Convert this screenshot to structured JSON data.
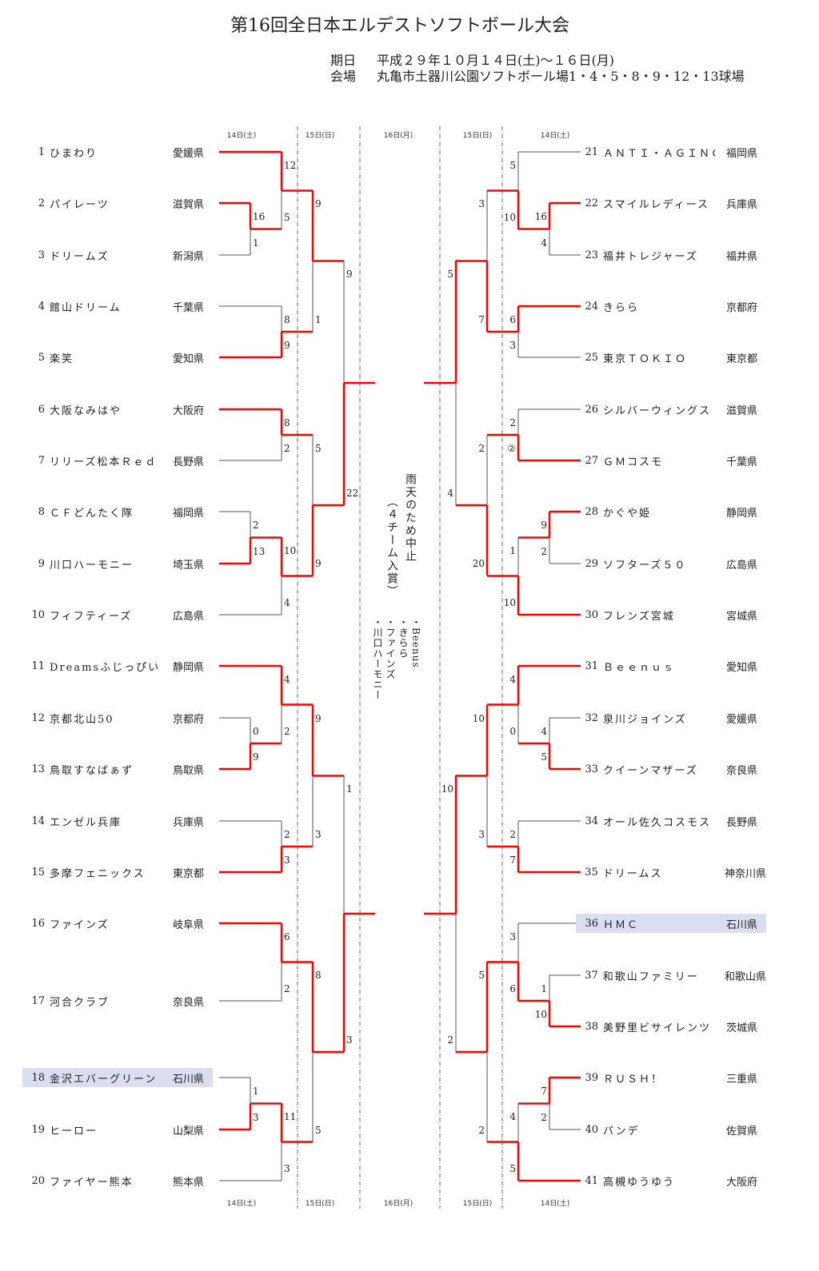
{
  "header": {
    "title": "第16回全日本エルデストソフトボール大会",
    "date_label": "期日",
    "date_value": "平成２９年１０月１４日(土)～１６日(月)",
    "venue_label": "会場",
    "venue_value": "丸亀市土器川公園ソフトボール場1・4・5・8・9・12・13球場"
  },
  "round_dates": [
    "14日(土)",
    "15日(日)",
    "16日(月)",
    "15日(日)",
    "14日(土)"
  ],
  "center_note": {
    "cancel": "雨天のため中止",
    "award": "（４チーム入賞）",
    "winners": [
      "・Beenus",
      "・きらら",
      "・ファインズ",
      "・川口ハーモニー"
    ]
  },
  "colors": {
    "winner_line": "#ff0000",
    "line": "#555555",
    "highlight": "#d9dff0"
  },
  "left_teams": [
    {
      "no": "1",
      "name": "ひまわり",
      "pref": "愛媛県",
      "won_first_game": true
    },
    {
      "no": "2",
      "name": "パイレーツ",
      "pref": "滋賀県",
      "won_first_game": true
    },
    {
      "no": "3",
      "name": "ドリームズ",
      "pref": "新潟県",
      "won_first_game": false
    },
    {
      "no": "4",
      "name": "館山ドリーム",
      "pref": "千葉県",
      "won_first_game": false
    },
    {
      "no": "5",
      "name": "楽笑",
      "pref": "愛知県",
      "won_first_game": true
    },
    {
      "no": "6",
      "name": "大阪なみはや",
      "pref": "大阪府",
      "won_first_game": true
    },
    {
      "no": "7",
      "name": "リリーズ松本Ｒｅｄ",
      "pref": "長野県",
      "won_first_game": false
    },
    {
      "no": "8",
      "name": "ＣＦどんたく隊",
      "pref": "福岡県",
      "won_first_game": false
    },
    {
      "no": "9",
      "name": "川口ハーモニー",
      "pref": "埼玉県",
      "won_first_game": true
    },
    {
      "no": "10",
      "name": "フィフティーズ",
      "pref": "広島県",
      "won_first_game": false
    },
    {
      "no": "11",
      "name": "Dreamsふじっぴい",
      "pref": "静岡県",
      "won_first_game": true
    },
    {
      "no": "12",
      "name": "京都北山50",
      "pref": "京都府",
      "won_first_game": false
    },
    {
      "no": "13",
      "name": "鳥取すなばぁず",
      "pref": "鳥取県",
      "won_first_game": true
    },
    {
      "no": "14",
      "name": "エンゼル兵庫",
      "pref": "兵庫県",
      "won_first_game": false
    },
    {
      "no": "15",
      "name": "多摩フェニックス",
      "pref": "東京都",
      "won_first_game": true
    },
    {
      "no": "16",
      "name": "ファインズ",
      "pref": "岐阜県",
      "won_first_game": true
    },
    {
      "no": "17",
      "name": "河合クラブ",
      "pref": "奈良県",
      "won_first_game": false
    },
    {
      "no": "18",
      "name": "金沢エバーグリーン",
      "pref": "石川県",
      "won_first_game": false,
      "highlight": true
    },
    {
      "no": "19",
      "name": "ヒーロー",
      "pref": "山梨県",
      "won_first_game": true
    },
    {
      "no": "20",
      "name": "ファイヤー熊本",
      "pref": "熊本県",
      "won_first_game": false
    }
  ],
  "right_teams": [
    {
      "no": "21",
      "name": "ＡＮＴＩ・ＡＧＩＮＧ",
      "pref": "福岡県",
      "won_first_game": false
    },
    {
      "no": "22",
      "name": "スマイルレディース",
      "pref": "兵庫県",
      "won_first_game": true
    },
    {
      "no": "23",
      "name": "福井トレジャーズ",
      "pref": "福井県",
      "won_first_game": false
    },
    {
      "no": "24",
      "name": "きらら",
      "pref": "京都府",
      "won_first_game": true
    },
    {
      "no": "25",
      "name": "東京ＴＯＫＩＯ",
      "pref": "東京都",
      "won_first_game": false
    },
    {
      "no": "26",
      "name": "シルバーウィングス",
      "pref": "滋賀県",
      "won_first_game": false
    },
    {
      "no": "27",
      "name": "ＧＭコスモ",
      "pref": "千葉県",
      "won_first_game": true
    },
    {
      "no": "28",
      "name": "かぐや姫",
      "pref": "静岡県",
      "won_first_game": true
    },
    {
      "no": "29",
      "name": "ソフターズ５０",
      "pref": "広島県",
      "won_first_game": false
    },
    {
      "no": "30",
      "name": "フレンズ宮城",
      "pref": "宮城県",
      "won_first_game": true
    },
    {
      "no": "31",
      "name": "Ｂｅｅｎｕｓ",
      "pref": "愛知県",
      "won_first_game": true
    },
    {
      "no": "32",
      "name": "泉川ジョインズ",
      "pref": "愛媛県",
      "won_first_game": false
    },
    {
      "no": "33",
      "name": "クイーンマザーズ",
      "pref": "奈良県",
      "won_first_game": true
    },
    {
      "no": "34",
      "name": "オール佐久コスモス",
      "pref": "長野県",
      "won_first_game": false
    },
    {
      "no": "35",
      "name": "ドリームス",
      "pref": "神奈川県",
      "won_first_game": true
    },
    {
      "no": "36",
      "name": "ＨＭＣ",
      "pref": "石川県",
      "won_first_game": false,
      "highlight": true
    },
    {
      "no": "37",
      "name": "和歌山ファミリー",
      "pref": "和歌山県",
      "won_first_game": false
    },
    {
      "no": "38",
      "name": "美野里ビサイレンツ",
      "pref": "茨城県",
      "won_first_game": true
    },
    {
      "no": "39",
      "name": "ＲＵＳＨ！",
      "pref": "三重県",
      "won_first_game": true
    },
    {
      "no": "40",
      "name": "パンデ",
      "pref": "佐賀県",
      "won_first_game": false
    },
    {
      "no": "41",
      "name": "高槻ゆうゆう",
      "pref": "大阪府",
      "won_first_game": true
    }
  ],
  "left_games": [
    {
      "top": "16",
      "bottom": "1",
      "winner": "top"
    },
    {
      "top": "12",
      "bottom": "5",
      "winner": "top"
    },
    {
      "top": "8",
      "bottom": "9",
      "winner": "bottom"
    },
    {
      "top": "9",
      "bottom": "1",
      "winner": "top"
    },
    {
      "top": "8",
      "bottom": "2",
      "winner": "top"
    },
    {
      "top": "2",
      "bottom": "13",
      "winner": "bottom"
    },
    {
      "top": "10",
      "bottom": "4",
      "winner": "top"
    },
    {
      "top": "5",
      "bottom": "9",
      "winner": "bottom"
    },
    {
      "top": "9",
      "bottom": "22",
      "winner": "bottom"
    },
    {
      "top": "0",
      "bottom": "9",
      "winner": "bottom"
    },
    {
      "top": "4",
      "bottom": "2",
      "winner": "top"
    },
    {
      "top": "2",
      "bottom": "3",
      "winner": "bottom"
    },
    {
      "top": "9",
      "bottom": "3",
      "winner": "top"
    },
    {
      "top": "6",
      "bottom": "2",
      "winner": "top"
    },
    {
      "top": "1",
      "bottom": "3",
      "winner": "bottom"
    },
    {
      "top": "11",
      "bottom": "3",
      "winner": "top"
    },
    {
      "top": "8",
      "bottom": "5",
      "winner": "top"
    },
    {
      "top": "1",
      "bottom": "3",
      "winner": "bottom"
    }
  ],
  "right_games": [
    {
      "top": "16",
      "bottom": "4",
      "winner": "top"
    },
    {
      "top": "5",
      "bottom": "10",
      "winner": "bottom"
    },
    {
      "top": "6",
      "bottom": "3",
      "winner": "top"
    },
    {
      "top": "3",
      "bottom": "7",
      "winner": "bottom"
    },
    {
      "top": "2",
      "bottom": "②",
      "winner": "bottom"
    },
    {
      "top": "9",
      "bottom": "2",
      "winner": "top"
    },
    {
      "top": "1",
      "bottom": "10",
      "winner": "bottom"
    },
    {
      "top": "2",
      "bottom": "20",
      "winner": "bottom"
    },
    {
      "top": "5",
      "bottom": "4",
      "winner": "top"
    },
    {
      "top": "4",
      "bottom": "5",
      "winner": "bottom"
    },
    {
      "top": "4",
      "bottom": "0",
      "winner": "top"
    },
    {
      "top": "2",
      "bottom": "7",
      "winner": "bottom"
    },
    {
      "top": "10",
      "bottom": "3",
      "winner": "top"
    },
    {
      "top": "1",
      "bottom": "10",
      "winner": "bottom"
    },
    {
      "top": "3",
      "bottom": "6",
      "winner": "bottom"
    },
    {
      "top": "7",
      "bottom": "2",
      "winner": "top"
    },
    {
      "top": "4",
      "bottom": "5",
      "winner": "bottom"
    },
    {
      "top": "5",
      "bottom": "2",
      "winner": "top"
    },
    {
      "top": "10",
      "bottom": "2",
      "winner": "top"
    }
  ]
}
